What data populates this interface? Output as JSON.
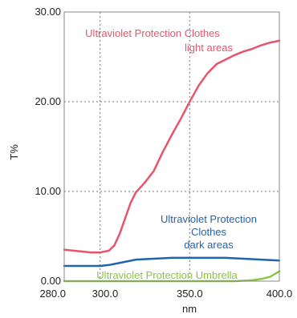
{
  "chart_data": {
    "type": "line",
    "xlabel": "nm",
    "ylabel": "T%",
    "xlim": [
      280,
      400
    ],
    "ylim": [
      0,
      30
    ],
    "x_ticks": [
      280.0,
      300.0,
      350.0,
      400.0
    ],
    "x_tick_labels": [
      "280.0",
      "300.0",
      "350.0",
      "400.0"
    ],
    "y_ticks": [
      0,
      10,
      20,
      30
    ],
    "y_tick_labels": [
      "0.00",
      "10.00",
      "20.00",
      "30.00"
    ],
    "grid": "dotted at x ticks and y ticks",
    "series": [
      {
        "name": "Ultraviolet Protection Clothes light areas",
        "color": "#e9546b",
        "points": [
          [
            280,
            3.5
          ],
          [
            285,
            3.4
          ],
          [
            290,
            3.3
          ],
          [
            295,
            3.2
          ],
          [
            300,
            3.2
          ],
          [
            305,
            3.4
          ],
          [
            308,
            4.0
          ],
          [
            311,
            5.3
          ],
          [
            314,
            7.0
          ],
          [
            317,
            8.7
          ],
          [
            320,
            9.9
          ],
          [
            325,
            11.0
          ],
          [
            330,
            12.3
          ],
          [
            335,
            14.4
          ],
          [
            340,
            16.3
          ],
          [
            345,
            18.1
          ],
          [
            350,
            20.0
          ],
          [
            355,
            21.8
          ],
          [
            360,
            23.2
          ],
          [
            365,
            24.2
          ],
          [
            370,
            24.7
          ],
          [
            375,
            25.2
          ],
          [
            380,
            25.6
          ],
          [
            385,
            25.9
          ],
          [
            390,
            26.3
          ],
          [
            395,
            26.6
          ],
          [
            400,
            26.8
          ]
        ]
      },
      {
        "name": "Ultraviolet Protection Clothes dark areas",
        "color": "#1f63b3",
        "points": [
          [
            280,
            1.7
          ],
          [
            290,
            1.7
          ],
          [
            300,
            1.7
          ],
          [
            305,
            1.8
          ],
          [
            310,
            2.0
          ],
          [
            315,
            2.2
          ],
          [
            320,
            2.4
          ],
          [
            330,
            2.5
          ],
          [
            340,
            2.6
          ],
          [
            350,
            2.6
          ],
          [
            360,
            2.6
          ],
          [
            370,
            2.6
          ],
          [
            380,
            2.5
          ],
          [
            390,
            2.4
          ],
          [
            400,
            2.3
          ]
        ]
      },
      {
        "name": "Ultraviolet Protection Umbrella",
        "color": "#8cc63f",
        "points": [
          [
            280,
            0.0
          ],
          [
            360,
            0.0
          ],
          [
            375,
            0.0
          ],
          [
            385,
            0.1
          ],
          [
            390,
            0.25
          ],
          [
            395,
            0.5
          ],
          [
            400,
            1.1
          ]
        ]
      }
    ],
    "annotations": [
      {
        "lines": [
          "Ultraviolet Protection Clothes",
          "light areas"
        ],
        "color": "#e9546b"
      },
      {
        "lines": [
          "Ultraviolet Protection",
          "Clothes",
          "dark areas"
        ],
        "color": "#1f63b3"
      },
      {
        "lines": [
          "Ultraviolet Protection Umbrella"
        ],
        "color": "#8cc63f"
      }
    ]
  }
}
